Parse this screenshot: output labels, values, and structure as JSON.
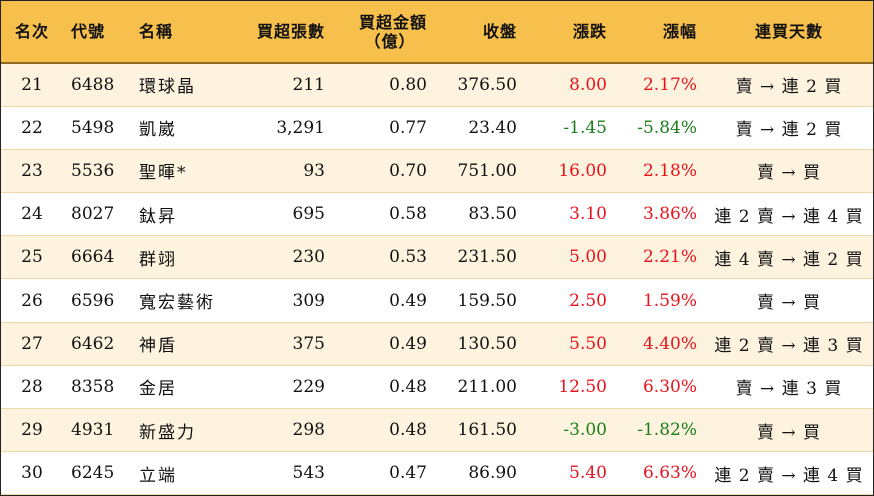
{
  "headers": {
    "rank": "名次",
    "code": "代號",
    "name": "名稱",
    "net_lots": "買超張數",
    "net_amount_line1": "買超金額",
    "net_amount_line2": "（億）",
    "close": "收盤",
    "change": "漲跌",
    "pct": "漲幅",
    "streak": "連買天數"
  },
  "rows": [
    {
      "rank": "21",
      "code": "6488",
      "name": "環球晶",
      "net_lots": "211",
      "net_amount": "0.80",
      "close": "376.50",
      "change": "8.00",
      "pct": "2.17%",
      "direction": "up",
      "streak": "賣 → 連 2 買"
    },
    {
      "rank": "22",
      "code": "5498",
      "name": "凱崴",
      "net_lots": "3,291",
      "net_amount": "0.77",
      "close": "23.40",
      "change": "-1.45",
      "pct": "-5.84%",
      "direction": "down",
      "streak": "賣 → 連 2 買"
    },
    {
      "rank": "23",
      "code": "5536",
      "name": "聖暉*",
      "net_lots": "93",
      "net_amount": "0.70",
      "close": "751.00",
      "change": "16.00",
      "pct": "2.18%",
      "direction": "up",
      "streak": "賣 → 買"
    },
    {
      "rank": "24",
      "code": "8027",
      "name": "鈦昇",
      "net_lots": "695",
      "net_amount": "0.58",
      "close": "83.50",
      "change": "3.10",
      "pct": "3.86%",
      "direction": "up",
      "streak": "連 2 賣 → 連 4 買"
    },
    {
      "rank": "25",
      "code": "6664",
      "name": "群翊",
      "net_lots": "230",
      "net_amount": "0.53",
      "close": "231.50",
      "change": "5.00",
      "pct": "2.21%",
      "direction": "up",
      "streak": "連 4 賣 → 連 2 買"
    },
    {
      "rank": "26",
      "code": "6596",
      "name": "寬宏藝術",
      "net_lots": "309",
      "net_amount": "0.49",
      "close": "159.50",
      "change": "2.50",
      "pct": "1.59%",
      "direction": "up",
      "streak": "賣 → 買"
    },
    {
      "rank": "27",
      "code": "6462",
      "name": "神盾",
      "net_lots": "375",
      "net_amount": "0.49",
      "close": "130.50",
      "change": "5.50",
      "pct": "4.40%",
      "direction": "up",
      "streak": "連 2 賣 → 連 3 買"
    },
    {
      "rank": "28",
      "code": "8358",
      "name": "金居",
      "net_lots": "229",
      "net_amount": "0.48",
      "close": "211.00",
      "change": "12.50",
      "pct": "6.30%",
      "direction": "up",
      "streak": "賣 → 連 3 買"
    },
    {
      "rank": "29",
      "code": "4931",
      "name": "新盛力",
      "net_lots": "298",
      "net_amount": "0.48",
      "close": "161.50",
      "change": "-3.00",
      "pct": "-1.82%",
      "direction": "down",
      "streak": "賣 → 買"
    },
    {
      "rank": "30",
      "code": "6245",
      "name": "立端",
      "net_lots": "543",
      "net_amount": "0.47",
      "close": "86.90",
      "change": "5.40",
      "pct": "6.63%",
      "direction": "up",
      "streak": "連 2 賣 → 連 4 買"
    }
  ],
  "colors": {
    "header_bg": "#f7c04c",
    "stripe_bg": "#fdf3de",
    "up": "#e8131c",
    "down": "#1a7f1a"
  }
}
